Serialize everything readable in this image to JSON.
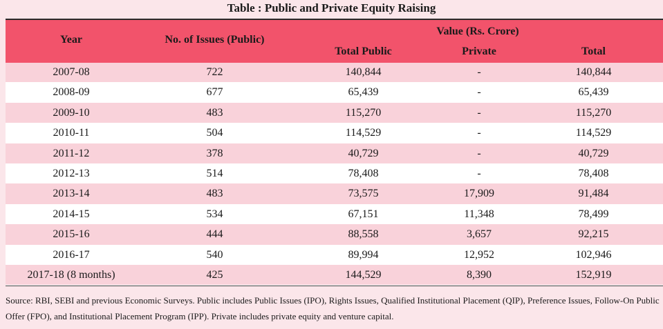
{
  "title": "Table : Public and Private Equity Raising",
  "headers": {
    "year": "Year",
    "issues": "No. of Issues (Public)",
    "value": "Value (Rs. Crore)",
    "total_public": "Total Public",
    "private": "Private",
    "total": "Total"
  },
  "rows": [
    {
      "year": "2007-08",
      "issues": "722",
      "total_public": "140,844",
      "private": "-",
      "total": "140,844"
    },
    {
      "year": "2008-09",
      "issues": "677",
      "total_public": "65,439",
      "private": "-",
      "total": "65,439"
    },
    {
      "year": "2009-10",
      "issues": "483",
      "total_public": "115,270",
      "private": "-",
      "total": "115,270"
    },
    {
      "year": "2010-11",
      "issues": "504",
      "total_public": "114,529",
      "private": "-",
      "total": "114,529"
    },
    {
      "year": "2011-12",
      "issues": "378",
      "total_public": "40,729",
      "private": "-",
      "total": "40,729"
    },
    {
      "year": "2012-13",
      "issues": "514",
      "total_public": "78,408",
      "private": "-",
      "total": "78,408"
    },
    {
      "year": "2013-14",
      "issues": "483",
      "total_public": "73,575",
      "private": "17,909",
      "total": "91,484"
    },
    {
      "year": "2014-15",
      "issues": "534",
      "total_public": "67,151",
      "private": "11,348",
      "total": "78,499"
    },
    {
      "year": "2015-16",
      "issues": "444",
      "total_public": "88,558",
      "private": "3,657",
      "total": "92,215"
    },
    {
      "year": "2016-17",
      "issues": "540",
      "total_public": "89,994",
      "private": "12,952",
      "total": "102,946"
    },
    {
      "year": "2017-18 (8 months)",
      "issues": "425",
      "total_public": "144,529",
      "private": "8,390",
      "total": "152,919"
    }
  ],
  "source_note": "Source: RBI, SEBI and previous Economic Surveys. Public includes Public Issues (IPO), Rights Issues, Qualified Institutional Placement (QIP), Preference Issues, Follow-On Public Offer (FPO), and Institutional Placement Program (IPP). Private includes private equity and venture capital.",
  "colors": {
    "header_bg": "#f2536b",
    "shade_row": "#f9d2da",
    "page_bg": "#fbe6ea"
  }
}
